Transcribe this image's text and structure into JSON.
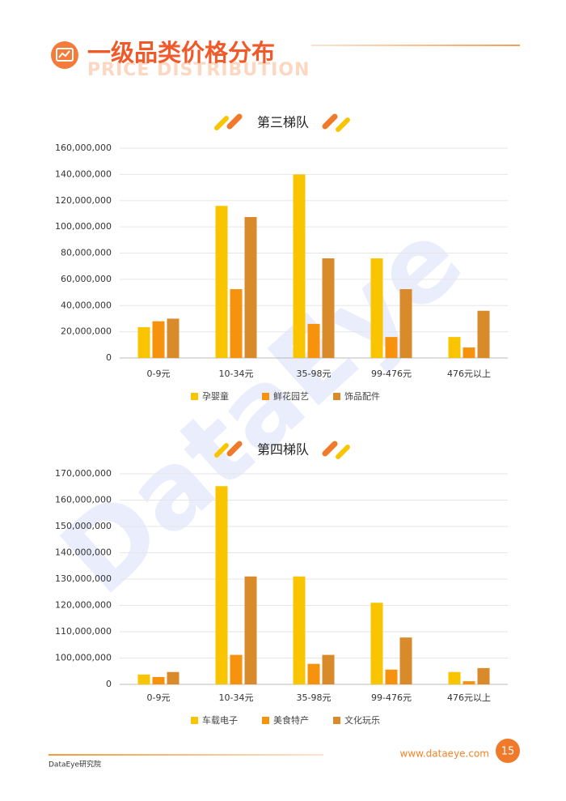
{
  "header": {
    "title": "一级品类价格分布",
    "subtitle": "PRICE DISTRIBUTION"
  },
  "watermark": "DataEye",
  "chart_data": [
    {
      "type": "bar",
      "title": "第三梯队",
      "categories": [
        "0-9元",
        "10-34元",
        "35-98元",
        "99-476元",
        "476元以上"
      ],
      "series": [
        {
          "name": "孕婴童",
          "color": "#f9c400",
          "values": [
            23500000,
            116000000,
            140000000,
            76000000,
            16000000
          ]
        },
        {
          "name": "鲜花园艺",
          "color": "#f7920c",
          "values": [
            28000000,
            52500000,
            26000000,
            16000000,
            8000000
          ]
        },
        {
          "name": "饰品配件",
          "color": "#d98a2b",
          "values": [
            30000000,
            107500000,
            76000000,
            52500000,
            36000000
          ]
        }
      ],
      "ylim": [
        0,
        160000000
      ],
      "yticks": [
        0,
        {
          "value": 20000000,
          "label": "20,000,000"
        },
        {
          "value": 40000000,
          "label": "40,000,000"
        },
        {
          "value": 60000000,
          "label": "60,000,000"
        },
        {
          "value": 80000000,
          "label": "80,000,000"
        },
        {
          "value": 100000000,
          "label": "100,000,000"
        },
        {
          "value": 120000000,
          "label": "120,000,000"
        },
        {
          "value": 140000000,
          "label": "140,000,000"
        },
        {
          "value": 160000000,
          "label": "160,000,000"
        }
      ],
      "grid": true,
      "legend": "bottom"
    },
    {
      "type": "bar",
      "title": "第四梯队",
      "categories": [
        "0-9元",
        "10-34元",
        "35-98元",
        "99-476元",
        "476元以上"
      ],
      "series": [
        {
          "name": "车载电子",
          "color": "#f9c400",
          "values": [
            93750000,
            165300000,
            131000000,
            121000000,
            94700000
          ]
        },
        {
          "name": "美食特产",
          "color": "#f7920c",
          "values": [
            92800000,
            101200000,
            97800000,
            95600000,
            91200000
          ]
        },
        {
          "name": "文化玩乐",
          "color": "#d98a2b",
          "values": [
            94700000,
            131000000,
            101200000,
            107800000,
            96200000
          ]
        }
      ],
      "ylim": [
        90000000,
        170000000
      ],
      "y_baseline_label": "0",
      "yticks": [
        {
          "value": 100000000,
          "label": "100,000,000"
        },
        {
          "value": 110000000,
          "label": "110,000,000"
        },
        {
          "value": 120000000,
          "label": "120,000,000"
        },
        {
          "value": 130000000,
          "label": "130,000,000"
        },
        {
          "value": 140000000,
          "label": "140,000,000"
        },
        {
          "value": 150000000,
          "label": "150,000,000"
        },
        {
          "value": 160000000,
          "label": "160,000,000"
        },
        {
          "value": 170000000,
          "label": "170,000,000"
        }
      ],
      "grid": true,
      "legend": "bottom"
    }
  ],
  "footer": {
    "org": "DataEye研究院",
    "url": "www.dataeye.com",
    "page": "15"
  }
}
